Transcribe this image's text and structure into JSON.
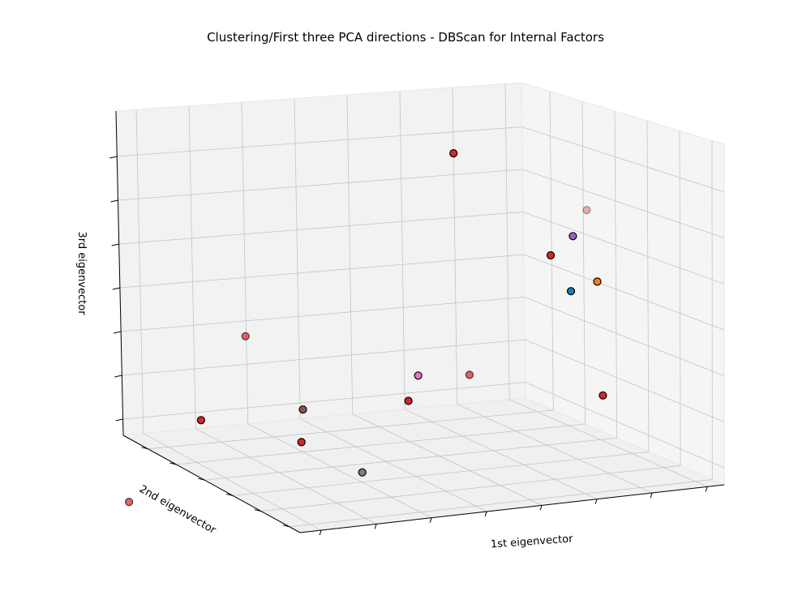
{
  "chart_data": {
    "type": "scatter",
    "title": "Clustering/First three PCA directions - DBScan for Internal Factors",
    "xlabel": "1st eigenvector",
    "ylabel": "2nd eigenvector",
    "zlabel": "3rd eigenvector",
    "projection": "3d",
    "grid": true,
    "points": [
      {
        "x": 0.3,
        "y": 0.1,
        "z": 0.87,
        "color": "#d62728",
        "alpha": 1.0
      },
      {
        "x": 0.71,
        "y": 0.75,
        "z": 0.93,
        "color": "#d62728",
        "alpha": 1.0
      },
      {
        "x": 0.73,
        "y": 0.3,
        "z": 0.8,
        "color": "#d62728",
        "alpha": 1.0
      },
      {
        "x": 0.09,
        "y": 0.2,
        "z": 0.75,
        "color": "#d62728",
        "alpha": 1.0
      },
      {
        "x": 0.11,
        "y": 0.55,
        "z": 0.71,
        "color": "#d62728",
        "alpha": 0.7
      },
      {
        "x": 0.95,
        "y": 0.58,
        "z": 0.71,
        "color": "#d62728",
        "alpha": 0.35
      },
      {
        "x": 0.39,
        "y": 0.25,
        "z": 0.64,
        "color": "#e377c2",
        "alpha": 1.0
      },
      {
        "x": 0.95,
        "y": 0.65,
        "z": 0.61,
        "color": "#9467bd",
        "alpha": 1.0
      },
      {
        "x": -0.28,
        "y": 0.3,
        "z": 0.45,
        "color": "#d62728",
        "alpha": 0.7
      },
      {
        "x": 0.18,
        "y": 0.4,
        "z": 0.46,
        "color": "#8c564b",
        "alpha": 1.0
      },
      {
        "x": 0.19,
        "y": 0.1,
        "z": 0.46,
        "color": "#7f7f7f",
        "alpha": 1.0
      },
      {
        "x": 0.92,
        "y": 0.6,
        "z": 0.46,
        "color": "#1f77b4",
        "alpha": 1.0
      },
      {
        "x": 0.96,
        "y": 0.55,
        "z": 0.49,
        "color": "#ff7f0e",
        "alpha": 1.0
      },
      {
        "x": 0.58,
        "y": 0.4,
        "z": 0.38,
        "color": "#d62728",
        "alpha": 0.7
      },
      {
        "x": 0.02,
        "y": 0.6,
        "z": 0.27,
        "color": "#d62728",
        "alpha": 1.0
      },
      {
        "x": 0.9,
        "y": 0.4,
        "z": 0.19,
        "color": "#d62728",
        "alpha": 1.0
      }
    ]
  }
}
